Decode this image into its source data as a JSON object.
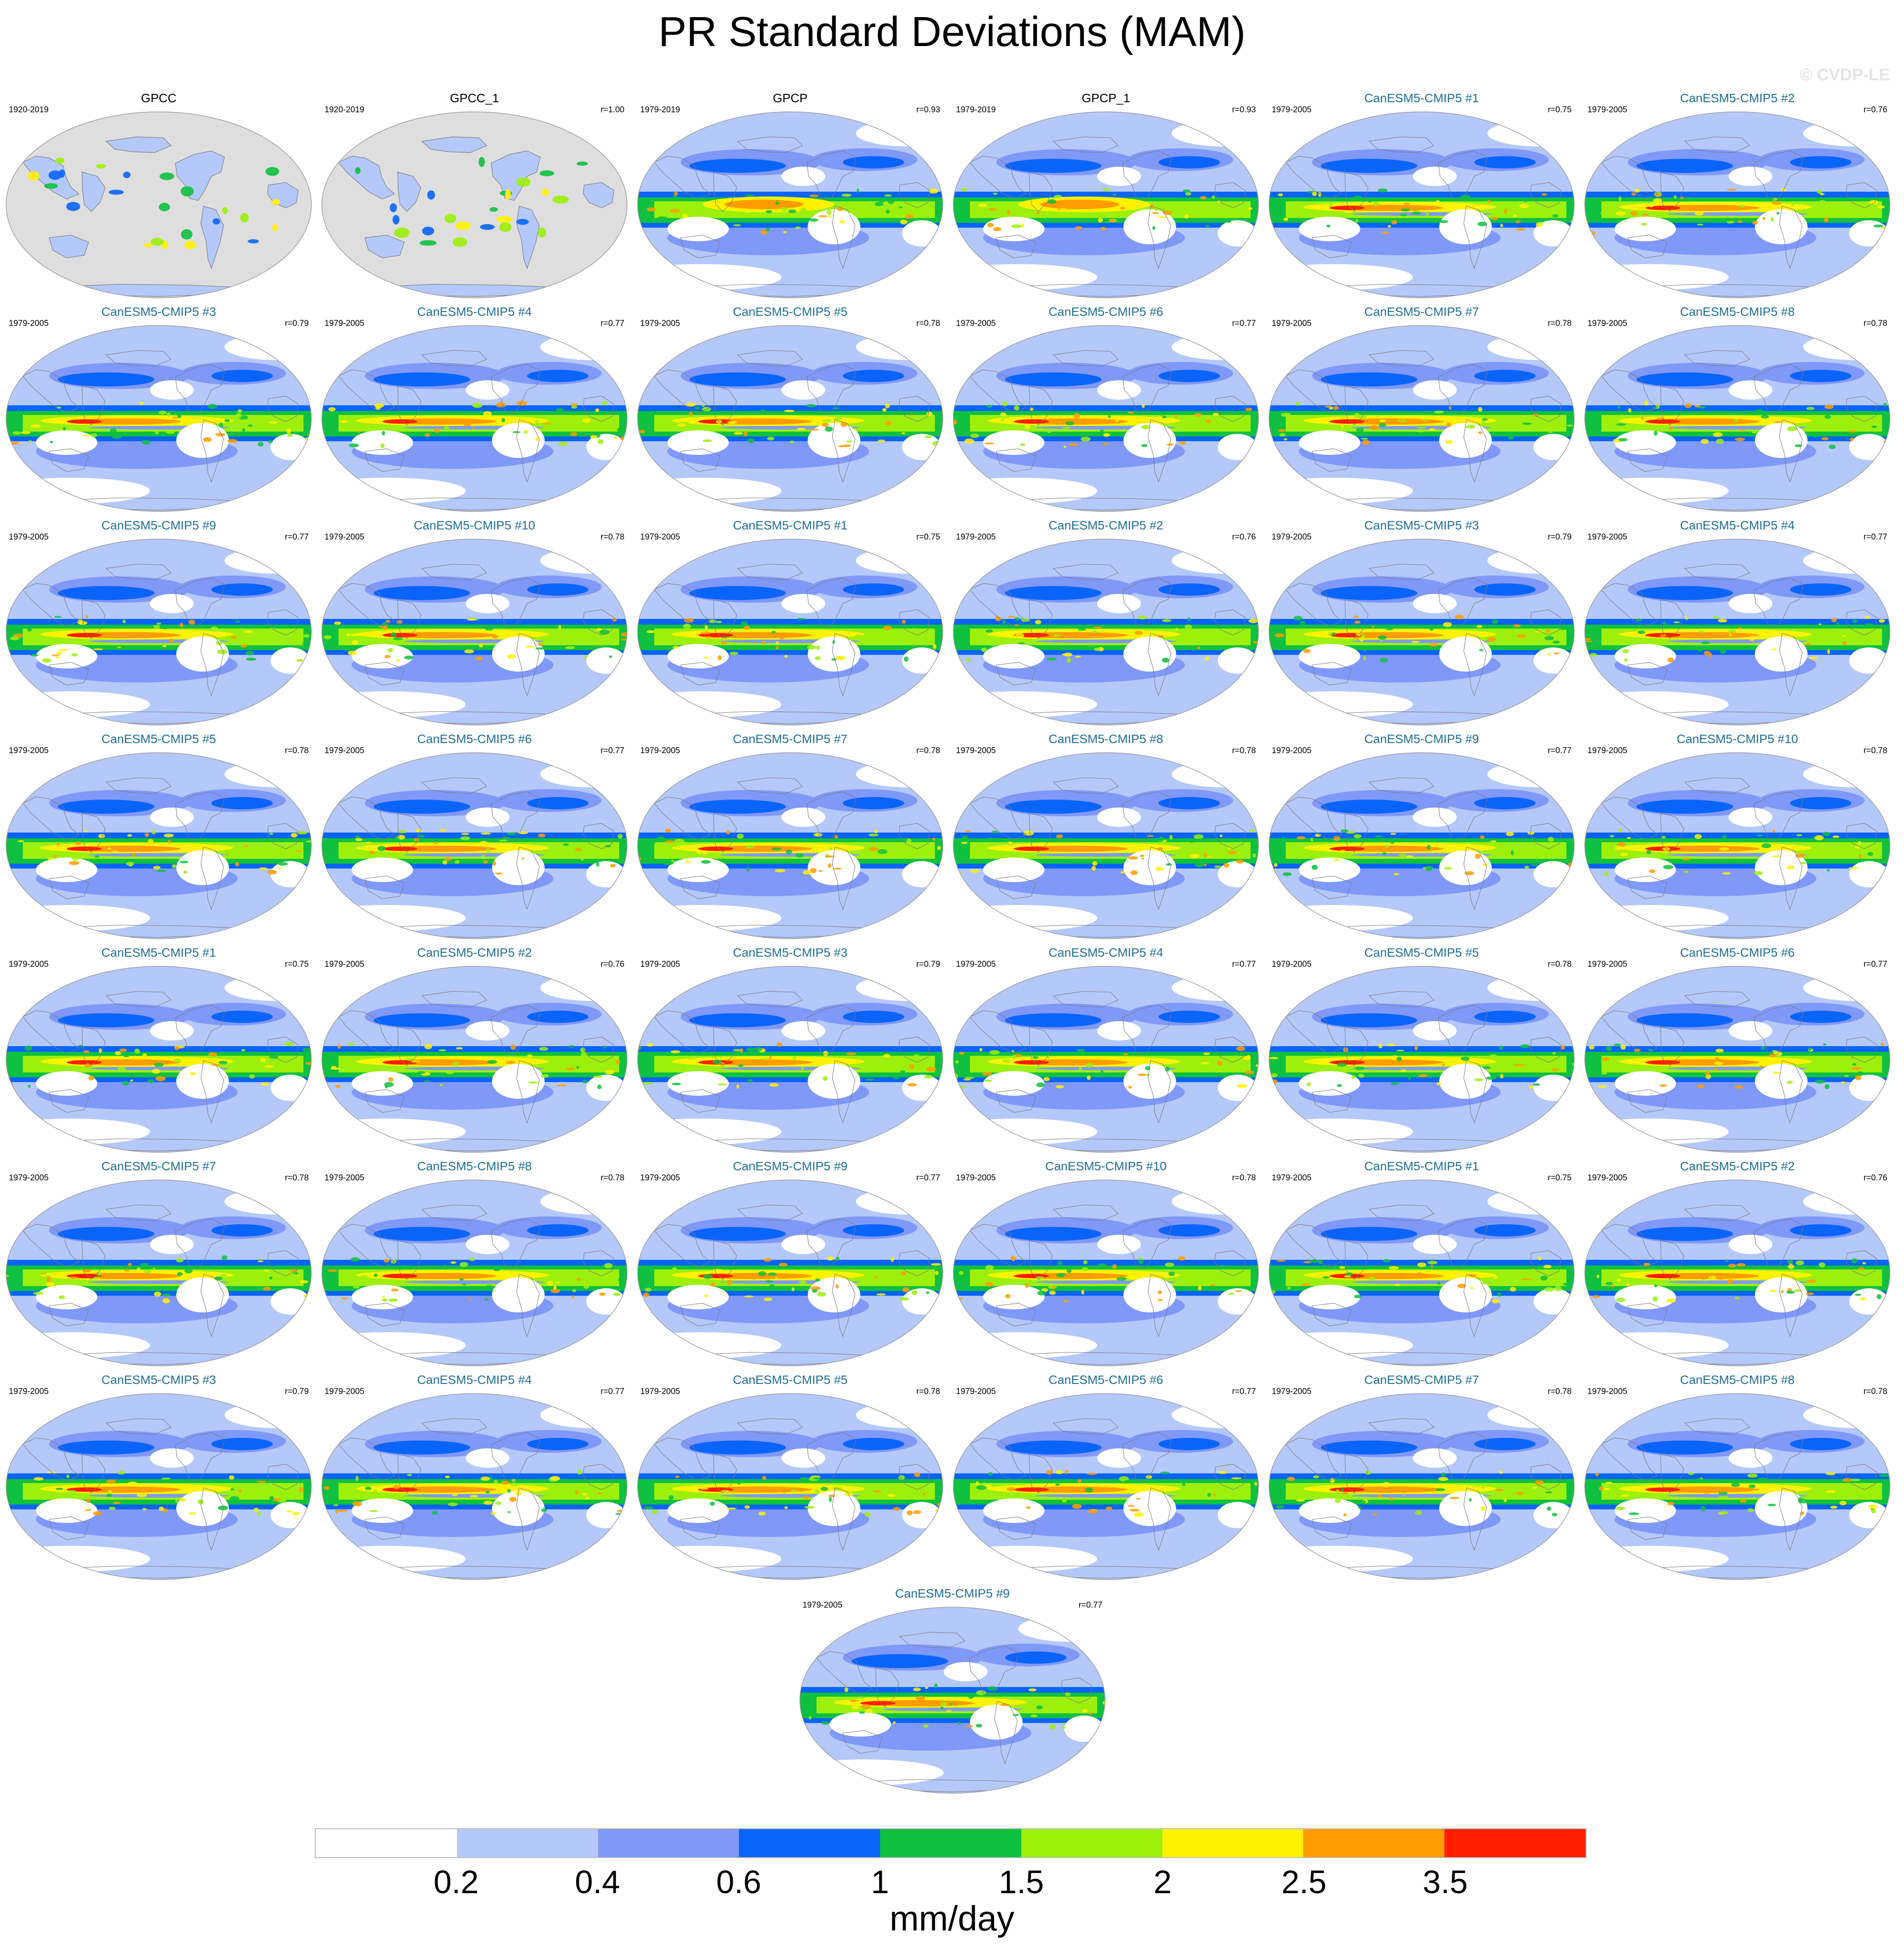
{
  "title": "PR Standard Deviations (MAM)",
  "watermark": "© CVDP-LE",
  "colors": {
    "model_title": "#1f6e96",
    "land_mask": "#dedede",
    "coastline": "#7a7a7a"
  },
  "chart_data": {
    "type": "map-panels",
    "projection": "robinson",
    "units": "mm/day",
    "colorbar": {
      "labels": [
        "0.2",
        "0.4",
        "0.6",
        "1",
        "1.5",
        "2",
        "2.5",
        "3.5"
      ],
      "colors": [
        "#ffffff",
        "#b4c8fa",
        "#8098f8",
        "#0a64fa",
        "#10c040",
        "#9cf00c",
        "#fff200",
        "#ff9c00",
        "#ff1e00"
      ]
    },
    "panels": [
      {
        "title": "GPCC",
        "years": "1920-2019",
        "corr": "",
        "kind": "land"
      },
      {
        "title": "GPCC_1",
        "years": "1920-2019",
        "corr": "r=1.00",
        "kind": "land"
      },
      {
        "title": "GPCP",
        "years": "1979-2019",
        "corr": "r=0.93",
        "kind": "obs"
      },
      {
        "title": "GPCP_1",
        "years": "1979-2019",
        "corr": "r=0.93",
        "kind": "obs"
      },
      {
        "title": "CanESM5-CMIP5 #1",
        "years": "1979-2005",
        "corr": "r=0.75",
        "kind": "model"
      },
      {
        "title": "CanESM5-CMIP5 #2",
        "years": "1979-2005",
        "corr": "r=0.76",
        "kind": "model"
      },
      {
        "title": "CanESM5-CMIP5 #3",
        "years": "1979-2005",
        "corr": "r=0.79",
        "kind": "model"
      },
      {
        "title": "CanESM5-CMIP5 #4",
        "years": "1979-2005",
        "corr": "r=0.77",
        "kind": "model"
      },
      {
        "title": "CanESM5-CMIP5 #5",
        "years": "1979-2005",
        "corr": "r=0.78",
        "kind": "model"
      },
      {
        "title": "CanESM5-CMIP5 #6",
        "years": "1979-2005",
        "corr": "r=0.77",
        "kind": "model"
      },
      {
        "title": "CanESM5-CMIP5 #7",
        "years": "1979-2005",
        "corr": "r=0.78",
        "kind": "model"
      },
      {
        "title": "CanESM5-CMIP5 #8",
        "years": "1979-2005",
        "corr": "r=0.78",
        "kind": "model"
      },
      {
        "title": "CanESM5-CMIP5 #9",
        "years": "1979-2005",
        "corr": "r=0.77",
        "kind": "model"
      },
      {
        "title": "CanESM5-CMIP5 #10",
        "years": "1979-2005",
        "corr": "r=0.78",
        "kind": "model"
      },
      {
        "title": "CanESM5-CMIP5 #1",
        "years": "1979-2005",
        "corr": "r=0.75",
        "kind": "model"
      },
      {
        "title": "CanESM5-CMIP5 #2",
        "years": "1979-2005",
        "corr": "r=0.76",
        "kind": "model"
      },
      {
        "title": "CanESM5-CMIP5 #3",
        "years": "1979-2005",
        "corr": "r=0.79",
        "kind": "model"
      },
      {
        "title": "CanESM5-CMIP5 #4",
        "years": "1979-2005",
        "corr": "r=0.77",
        "kind": "model"
      },
      {
        "title": "CanESM5-CMIP5 #5",
        "years": "1979-2005",
        "corr": "r=0.78",
        "kind": "model"
      },
      {
        "title": "CanESM5-CMIP5 #6",
        "years": "1979-2005",
        "corr": "r=0.77",
        "kind": "model"
      },
      {
        "title": "CanESM5-CMIP5 #7",
        "years": "1979-2005",
        "corr": "r=0.78",
        "kind": "model"
      },
      {
        "title": "CanESM5-CMIP5 #8",
        "years": "1979-2005",
        "corr": "r=0.78",
        "kind": "model"
      },
      {
        "title": "CanESM5-CMIP5 #9",
        "years": "1979-2005",
        "corr": "r=0.77",
        "kind": "model"
      },
      {
        "title": "CanESM5-CMIP5 #10",
        "years": "1979-2005",
        "corr": "r=0.78",
        "kind": "model"
      },
      {
        "title": "CanESM5-CMIP5 #1",
        "years": "1979-2005",
        "corr": "r=0.75",
        "kind": "model"
      },
      {
        "title": "CanESM5-CMIP5 #2",
        "years": "1979-2005",
        "corr": "r=0.76",
        "kind": "model"
      },
      {
        "title": "CanESM5-CMIP5 #3",
        "years": "1979-2005",
        "corr": "r=0.79",
        "kind": "model"
      },
      {
        "title": "CanESM5-CMIP5 #4",
        "years": "1979-2005",
        "corr": "r=0.77",
        "kind": "model"
      },
      {
        "title": "CanESM5-CMIP5 #5",
        "years": "1979-2005",
        "corr": "r=0.78",
        "kind": "model"
      },
      {
        "title": "CanESM5-CMIP5 #6",
        "years": "1979-2005",
        "corr": "r=0.77",
        "kind": "model"
      },
      {
        "title": "CanESM5-CMIP5 #7",
        "years": "1979-2005",
        "corr": "r=0.78",
        "kind": "model"
      },
      {
        "title": "CanESM5-CMIP5 #8",
        "years": "1979-2005",
        "corr": "r=0.78",
        "kind": "model"
      },
      {
        "title": "CanESM5-CMIP5 #9",
        "years": "1979-2005",
        "corr": "r=0.77",
        "kind": "model"
      },
      {
        "title": "CanESM5-CMIP5 #10",
        "years": "1979-2005",
        "corr": "r=0.78",
        "kind": "model"
      },
      {
        "title": "CanESM5-CMIP5 #1",
        "years": "1979-2005",
        "corr": "r=0.75",
        "kind": "model"
      },
      {
        "title": "CanESM5-CMIP5 #2",
        "years": "1979-2005",
        "corr": "r=0.76",
        "kind": "model"
      },
      {
        "title": "CanESM5-CMIP5 #3",
        "years": "1979-2005",
        "corr": "r=0.79",
        "kind": "model"
      },
      {
        "title": "CanESM5-CMIP5 #4",
        "years": "1979-2005",
        "corr": "r=0.77",
        "kind": "model"
      },
      {
        "title": "CanESM5-CMIP5 #5",
        "years": "1979-2005",
        "corr": "r=0.78",
        "kind": "model"
      },
      {
        "title": "CanESM5-CMIP5 #6",
        "years": "1979-2005",
        "corr": "r=0.77",
        "kind": "model"
      },
      {
        "title": "CanESM5-CMIP5 #7",
        "years": "1979-2005",
        "corr": "r=0.78",
        "kind": "model"
      },
      {
        "title": "CanESM5-CMIP5 #8",
        "years": "1979-2005",
        "corr": "r=0.78",
        "kind": "model"
      },
      {
        "title": "CanESM5-CMIP5 #9",
        "years": "1979-2005",
        "corr": "r=0.77",
        "kind": "model"
      }
    ]
  }
}
